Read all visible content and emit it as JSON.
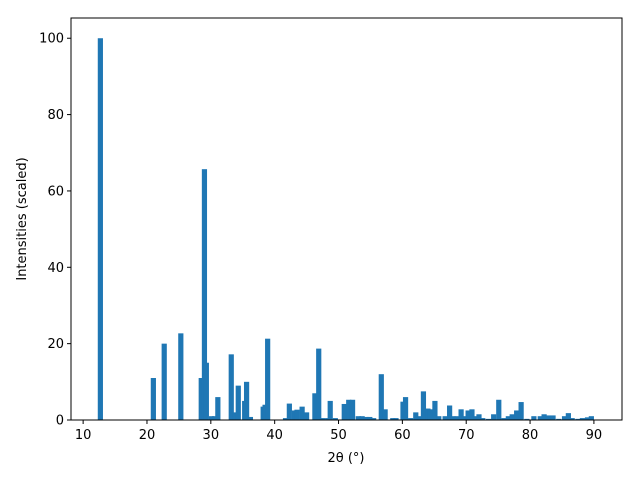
{
  "chart_data": {
    "type": "bar",
    "x_label": "2θ (°)",
    "y_label": "Intensities (scaled)",
    "color": "#1f77b4",
    "x": [
      12.7,
      21.0,
      22.7,
      25.3,
      28.5,
      29.0,
      29.3,
      30.1,
      30.6,
      31.1,
      33.2,
      33.8,
      34.3,
      35.3,
      35.6,
      36.2,
      38.2,
      38.5,
      38.9,
      41.7,
      42.3,
      43.1,
      43.5,
      44.3,
      45.0,
      46.3,
      46.9,
      47.5,
      48.3,
      48.7,
      49.5,
      50.9,
      51.6,
      52.2,
      53.1,
      53.7,
      54.3,
      54.9,
      55.5,
      56.7,
      57.3,
      58.5,
      59.0,
      60.1,
      60.5,
      61.3,
      62.1,
      62.7,
      63.3,
      64.0,
      64.4,
      65.1,
      65.7,
      66.7,
      67.4,
      67.9,
      68.6,
      69.2,
      69.6,
      70.3,
      70.9,
      71.5,
      72.0,
      72.6,
      73.5,
      74.3,
      75.1,
      75.9,
      76.6,
      77.2,
      77.9,
      78.6,
      79.5,
      80.6,
      81.6,
      82.2,
      82.8,
      83.6,
      84.5,
      85.4,
      86.0,
      86.6,
      87.5,
      88.2,
      89.0,
      89.6
    ],
    "values": [
      100,
      11,
      20,
      22.7,
      11,
      65.7,
      15,
      1,
      1,
      6,
      17.2,
      2,
      9,
      5,
      10,
      0.8,
      3.5,
      4,
      21.3,
      0.5,
      4.3,
      2.5,
      2.7,
      3.5,
      2,
      7,
      18.7,
      0.5,
      0.5,
      5,
      0.5,
      4.2,
      5.3,
      5.3,
      1,
      1,
      0.8,
      0.8,
      0.5,
      12,
      2.8,
      0.5,
      0.5,
      4.8,
      6,
      0.5,
      2,
      1,
      7.5,
      3,
      2.8,
      5,
      1,
      1,
      3.8,
      1,
      1,
      2.8,
      1,
      2.5,
      2.8,
      1,
      1.5,
      0.5,
      0.3,
      1.5,
      5.3,
      0.5,
      1,
      1.5,
      2.5,
      4.7,
      0.3,
      1,
      1,
      1.5,
      1.2,
      1.2,
      0.3,
      1,
      1.8,
      0.5,
      0.3,
      0.5,
      0.7,
      1
    ],
    "xlim": [
      8.1,
      94.4
    ],
    "ylim": [
      0,
      105.3
    ],
    "xticks": [
      10,
      20,
      30,
      40,
      50,
      60,
      70,
      80,
      90
    ],
    "yticks": [
      0,
      20,
      40,
      60,
      80,
      100
    ],
    "grid": false
  }
}
